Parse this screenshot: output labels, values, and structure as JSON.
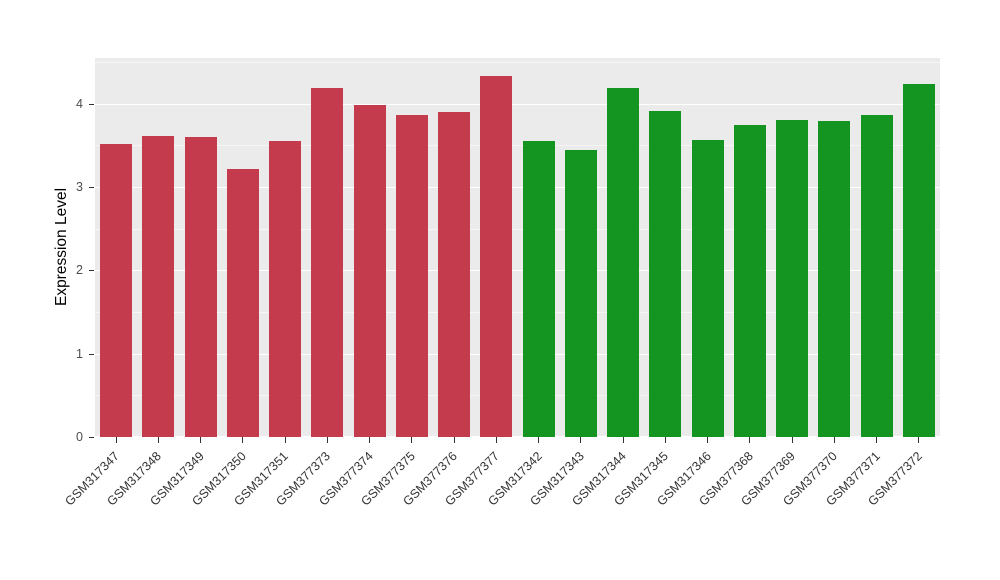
{
  "figure": {
    "background": "#FFFFFF",
    "panel_background": "#EBEBEB",
    "grid_major_color": "#FFFFFF",
    "grid_minor_color": "#FFFFFF",
    "tick_mark_color": "#333333",
    "tick_label_color": "#4D4D4D",
    "axis_title_color": "#000000"
  },
  "chart_data": {
    "type": "bar",
    "title": "",
    "xlabel": "",
    "ylabel": "Expression Level",
    "ylim": [
      0,
      4.55
    ],
    "yticks": [
      0,
      1,
      2,
      3,
      4
    ],
    "minor_tick_step": 0.5,
    "grid": "on",
    "legend": "none",
    "categories": [
      "GSM317347",
      "GSM317348",
      "GSM317349",
      "GSM317350",
      "GSM317351",
      "GSM377373",
      "GSM377374",
      "GSM377375",
      "GSM377376",
      "GSM377377",
      "GSM317342",
      "GSM317343",
      "GSM317344",
      "GSM317345",
      "GSM317346",
      "GSM377368",
      "GSM377369",
      "GSM377370",
      "GSM377371",
      "GSM377372"
    ],
    "values": [
      3.52,
      3.61,
      3.6,
      3.22,
      3.55,
      4.19,
      3.98,
      3.86,
      3.9,
      4.33,
      3.55,
      3.45,
      4.19,
      3.91,
      3.57,
      3.74,
      3.8,
      3.79,
      3.86,
      4.24
    ],
    "groups": [
      "group1",
      "group1",
      "group1",
      "group1",
      "group1",
      "group1",
      "group1",
      "group1",
      "group1",
      "group1",
      "group2",
      "group2",
      "group2",
      "group2",
      "group2",
      "group2",
      "group2",
      "group2",
      "group2",
      "group2"
    ],
    "group_colors": {
      "group1": "#C43B4E",
      "group2": "#149421"
    }
  }
}
